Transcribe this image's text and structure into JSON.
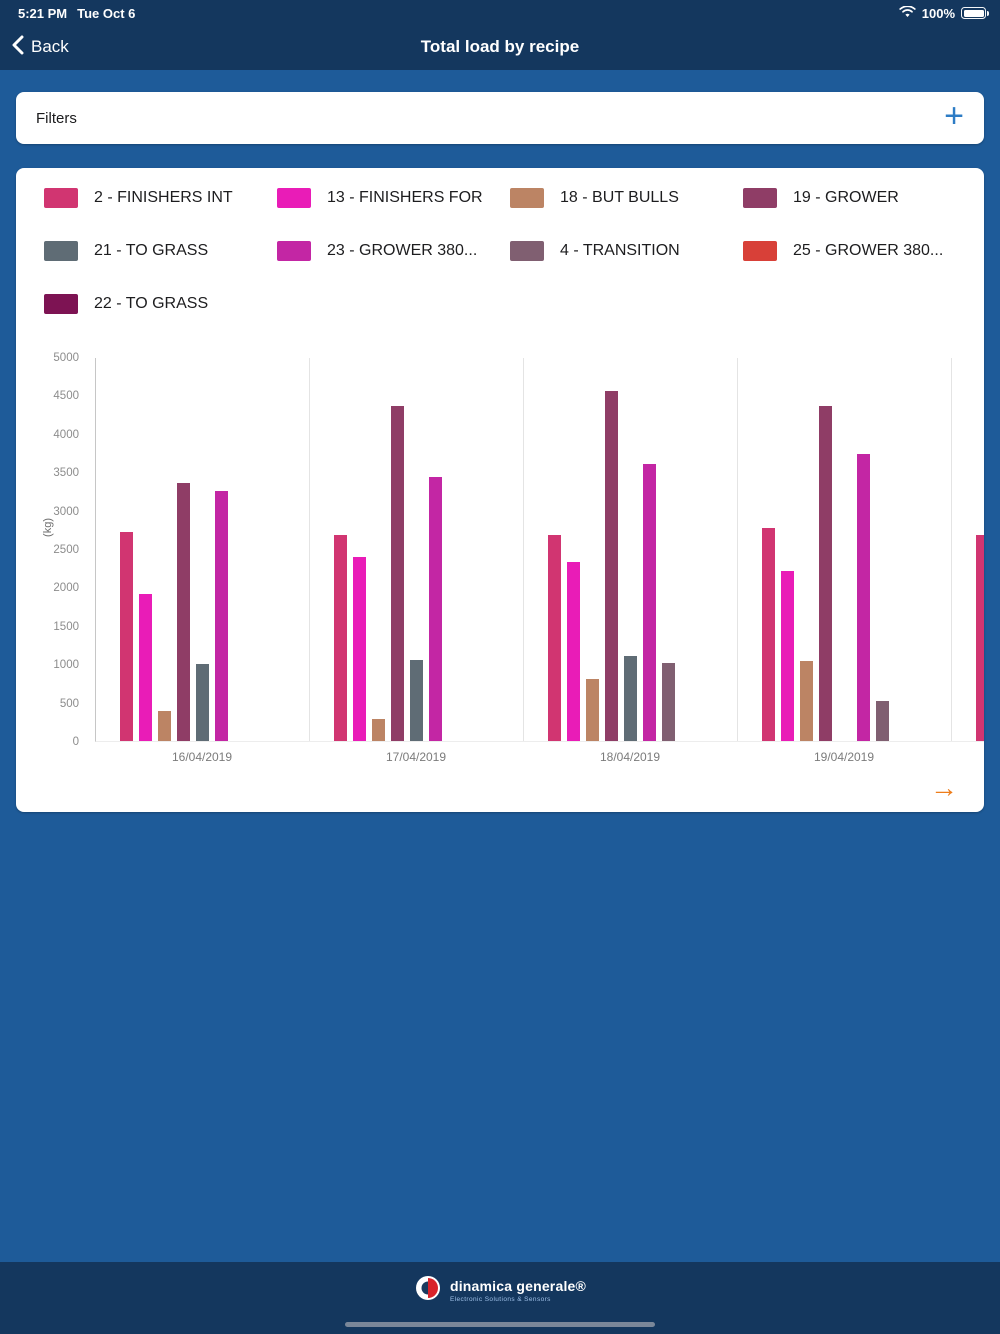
{
  "status_bar": {
    "time": "5:21 PM",
    "date": "Tue Oct 6",
    "battery_percent": "100%"
  },
  "nav": {
    "back_label": "Back",
    "title": "Total load by recipe"
  },
  "filters": {
    "label": "Filters"
  },
  "icons": {
    "plus": "+",
    "next_arrow": "→"
  },
  "legend": {
    "items": [
      {
        "label": "2 - FINISHERS INT",
        "color": "#d13571"
      },
      {
        "label": "13 - FINISHERS FOR",
        "color": "#e91cb7"
      },
      {
        "label": "18 - BUT BULLS",
        "color": "#bc8464"
      },
      {
        "label": "19 - GROWER",
        "color": "#8f3d66"
      },
      {
        "label": "21 - TO GRASS",
        "color": "#5f6c75"
      },
      {
        "label": "23 - GROWER 380...",
        "color": "#c326a4"
      },
      {
        "label": "4 - TRANSITION",
        "color": "#805f71"
      },
      {
        "label": "25 - GROWER 380...",
        "color": "#d84038"
      },
      {
        "label": "22 - TO GRASS",
        "color": "#7d1353"
      }
    ]
  },
  "chart_data": {
    "type": "bar",
    "title": "Total load by recipe",
    "ylabel": "(kg)",
    "unit": "kg",
    "ylim": [
      0,
      5000
    ],
    "ytick_step": 500,
    "grid": false,
    "legend_position": "top",
    "categories": [
      "16/04/2019",
      "17/04/2019",
      "18/04/2019",
      "19/04/2019"
    ],
    "groups": [
      {
        "label": "16/04/2019",
        "bars": [
          {
            "series": "2 - FINISHERS INT",
            "value": 2720
          },
          {
            "series": "13 - FINISHERS FOR",
            "value": 1910
          },
          {
            "series": "18 - BUT BULLS",
            "value": 390
          },
          {
            "series": "19 - GROWER",
            "value": 3360
          },
          {
            "series": "21 - TO GRASS",
            "value": 1000
          },
          {
            "series": "23 - GROWER 380...",
            "value": 3250
          }
        ]
      },
      {
        "label": "17/04/2019",
        "bars": [
          {
            "series": "2 - FINISHERS INT",
            "value": 2680
          },
          {
            "series": "13 - FINISHERS FOR",
            "value": 2400
          },
          {
            "series": "18 - BUT BULLS",
            "value": 280
          },
          {
            "series": "19 - GROWER",
            "value": 4360
          },
          {
            "series": "21 - TO GRASS",
            "value": 1060
          },
          {
            "series": "23 - GROWER 380...",
            "value": 3440
          }
        ]
      },
      {
        "label": "18/04/2019",
        "bars": [
          {
            "series": "2 - FINISHERS INT",
            "value": 2680
          },
          {
            "series": "13 - FINISHERS FOR",
            "value": 2330
          },
          {
            "series": "18 - BUT BULLS",
            "value": 810
          },
          {
            "series": "19 - GROWER",
            "value": 4560
          },
          {
            "series": "21 - TO GRASS",
            "value": 1110
          },
          {
            "series": "23 - GROWER 380...",
            "value": 3610
          },
          {
            "series": "4 - TRANSITION",
            "value": 1020
          }
        ]
      },
      {
        "label": "19/04/2019",
        "bars": [
          {
            "series": "2 - FINISHERS INT",
            "value": 2770
          },
          {
            "series": "13 - FINISHERS FOR",
            "value": 2210
          },
          {
            "series": "18 - BUT BULLS",
            "value": 1040
          },
          {
            "series": "19 - GROWER",
            "value": 4360
          },
          {
            "series": "21 - TO GRASS",
            "value": 0
          },
          {
            "series": "23 - GROWER 380...",
            "value": 3740
          },
          {
            "series": "4 - TRANSITION",
            "value": 520
          }
        ]
      }
    ],
    "overflow_group": {
      "label": "",
      "bars": [
        {
          "series": "2 - FINISHERS INT",
          "value": 2680
        }
      ]
    }
  },
  "footer": {
    "brand": "dinamica generale®",
    "tagline": "Electronic Solutions & Sensors"
  }
}
